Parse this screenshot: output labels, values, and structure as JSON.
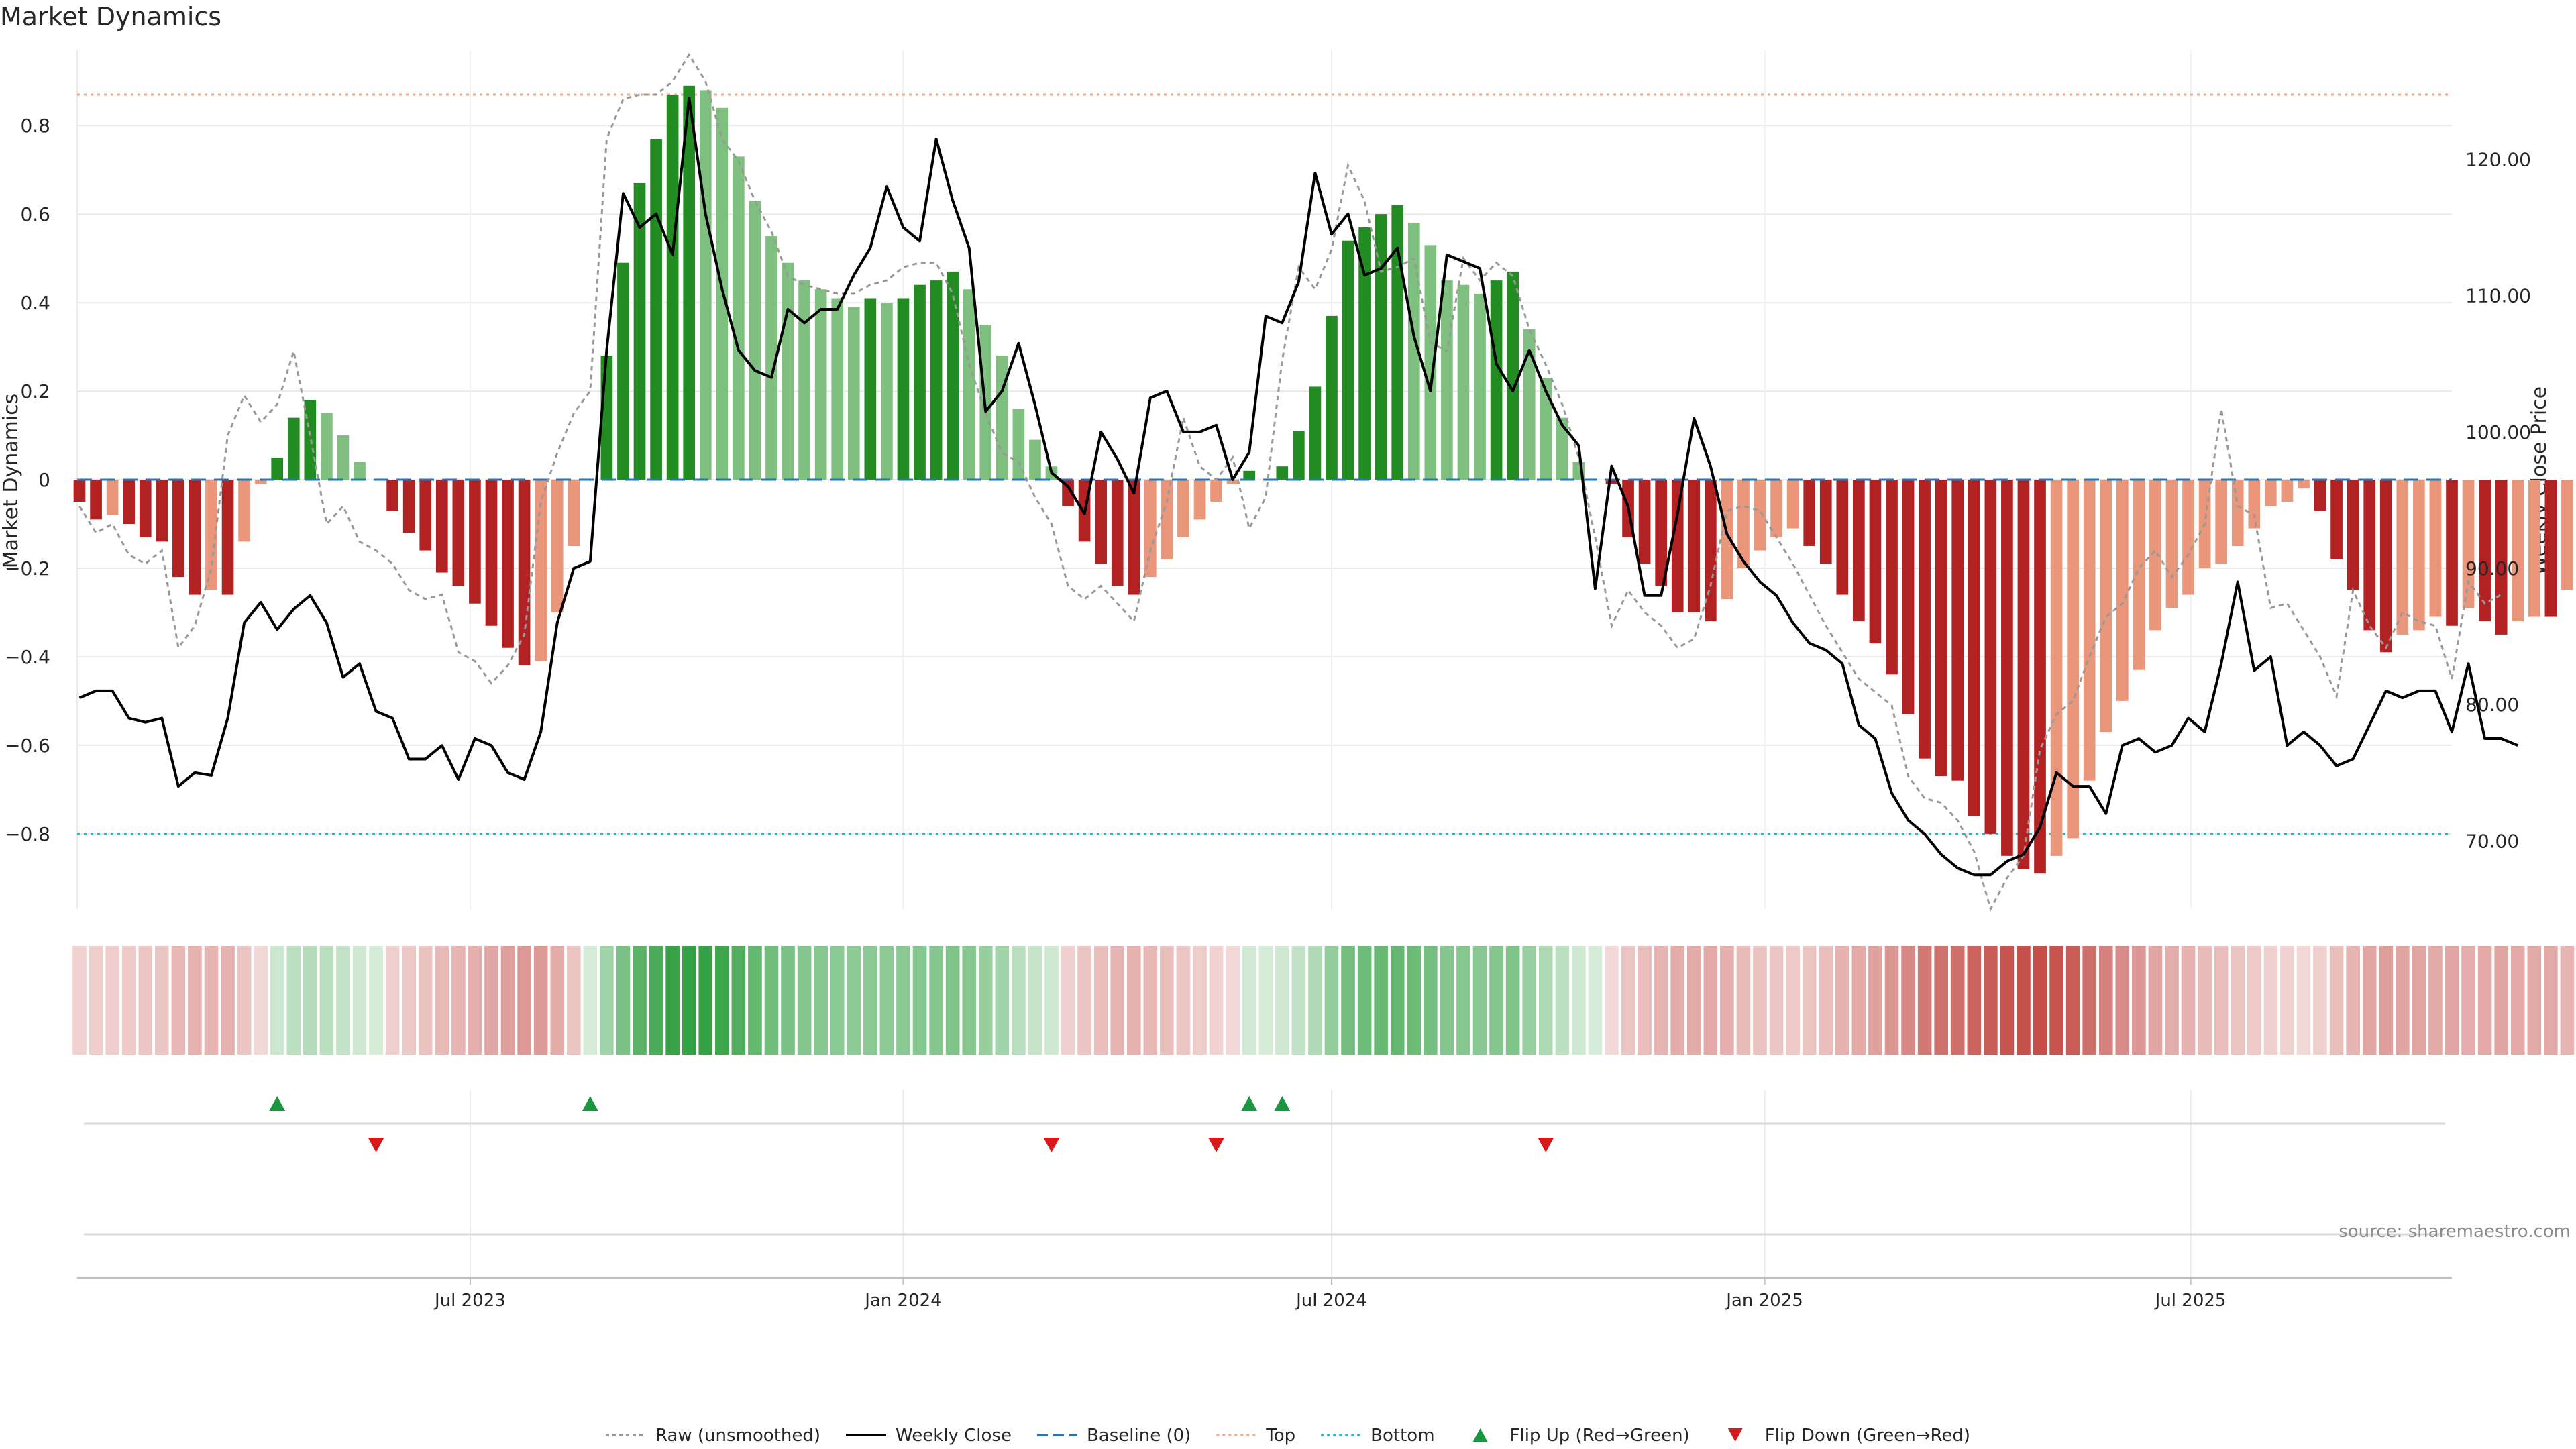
{
  "chart_data": {
    "type": "bar",
    "title": "Market Dynamics",
    "ylabel": "Market Dynamics",
    "y2label": "Weekly Close Price",
    "ylim": [
      -0.97,
      0.97
    ],
    "y2lim": [
      65.0,
      128.0
    ],
    "xlim": [
      "2023-01-15",
      "2025-10-20"
    ],
    "yticks": [
      -0.8,
      -0.6,
      -0.4,
      -0.2,
      0,
      0.2,
      0.4,
      0.6,
      0.8
    ],
    "ytick_labels": [
      "−0.8",
      "−0.6",
      "−0.4",
      "−0.2",
      "0",
      "0.2",
      "0.4",
      "0.6",
      "0.8"
    ],
    "y2ticks": [
      70,
      80,
      90,
      100,
      110,
      120
    ],
    "y2tick_labels": [
      "70.00",
      "80.00",
      "90.00",
      "100.00",
      "110.00",
      "120.00"
    ],
    "xticks": [
      "2023-07-01",
      "2024-01-01",
      "2024-07-01",
      "2025-01-01",
      "2025-07-01"
    ],
    "xtick_labels": [
      "Jul 2023",
      "Jan 2024",
      "Jul 2024",
      "Jan 2025",
      "Jul 2025"
    ],
    "grid": true,
    "legend_position": "bottom-center",
    "top_threshold": 0.87,
    "bottom_threshold": -0.8,
    "baseline": 0,
    "first_week": "2023-01-16",
    "week_step_days": 7,
    "colors": {
      "strong_green": "#228b22",
      "light_green": "#7fbf7f",
      "strong_red": "#b22222",
      "light_red": "#e9967a",
      "raw_line": "#999999",
      "close_line": "#000000",
      "baseline": "#1f77b4",
      "top": "#f4a582",
      "bottom": "#17becf",
      "flip_up": "#1a9641",
      "flip_down": "#d7191c"
    },
    "series": [
      {
        "name": "Market Dynamics",
        "values": [
          -0.05,
          -0.09,
          -0.08,
          -0.1,
          -0.13,
          -0.14,
          -0.22,
          -0.26,
          -0.25,
          -0.26,
          -0.14,
          -0.01,
          0.05,
          0.14,
          0.18,
          0.15,
          0.1,
          0.04,
          0.0,
          -0.07,
          -0.12,
          -0.16,
          -0.21,
          -0.24,
          -0.28,
          -0.33,
          -0.38,
          -0.42,
          -0.41,
          -0.3,
          -0.15,
          0.0,
          0.28,
          0.49,
          0.67,
          0.77,
          0.87,
          0.89,
          0.88,
          0.84,
          0.73,
          0.63,
          0.55,
          0.49,
          0.45,
          0.43,
          0.41,
          0.39,
          0.41,
          0.4,
          0.41,
          0.44,
          0.45,
          0.47,
          0.43,
          0.35,
          0.28,
          0.16,
          0.09,
          0.03,
          -0.06,
          -0.14,
          -0.19,
          -0.24,
          -0.26,
          -0.22,
          -0.18,
          -0.13,
          -0.09,
          -0.05,
          -0.01,
          0.02,
          0.0,
          0.03,
          0.11,
          0.21,
          0.37,
          0.54,
          0.57,
          0.6,
          0.62,
          0.58,
          0.53,
          0.45,
          0.44,
          0.42,
          0.45,
          0.47,
          0.34,
          0.23,
          0.14,
          0.04,
          0.0,
          -0.01,
          -0.13,
          -0.19,
          -0.24,
          -0.3,
          -0.3,
          -0.32,
          -0.27,
          -0.2,
          -0.16,
          -0.13,
          -0.11,
          -0.15,
          -0.19,
          -0.26,
          -0.32,
          -0.37,
          -0.44,
          -0.53,
          -0.63,
          -0.67,
          -0.68,
          -0.76,
          -0.8,
          -0.85,
          -0.88,
          -0.89,
          -0.85,
          -0.81,
          -0.68,
          -0.57,
          -0.5,
          -0.43,
          -0.34,
          -0.29,
          -0.26,
          -0.2,
          -0.19,
          -0.15,
          -0.11,
          -0.06,
          -0.05,
          -0.02,
          -0.07,
          -0.18,
          -0.25,
          -0.34,
          -0.39,
          -0.35,
          -0.34,
          -0.31,
          -0.33,
          -0.29,
          -0.32,
          -0.35,
          -0.32,
          -0.31,
          -0.31,
          -0.25
        ]
      },
      {
        "name": "Raw (unsmoothed)",
        "values": [
          -0.06,
          -0.12,
          -0.1,
          -0.17,
          -0.19,
          -0.16,
          -0.38,
          -0.33,
          -0.2,
          0.1,
          0.19,
          0.13,
          0.17,
          0.29,
          0.1,
          -0.1,
          -0.06,
          -0.14,
          -0.16,
          -0.19,
          -0.25,
          -0.27,
          -0.26,
          -0.39,
          -0.41,
          -0.46,
          -0.42,
          -0.35,
          -0.05,
          0.06,
          0.15,
          0.2,
          0.77,
          0.86,
          0.87,
          0.87,
          0.9,
          0.96,
          0.9,
          0.77,
          0.72,
          0.63,
          0.56,
          0.46,
          0.44,
          0.43,
          0.42,
          0.42,
          0.44,
          0.45,
          0.48,
          0.49,
          0.49,
          0.42,
          0.26,
          0.15,
          0.06,
          0.04,
          -0.04,
          -0.1,
          -0.24,
          -0.27,
          -0.24,
          -0.28,
          -0.32,
          -0.16,
          -0.05,
          0.14,
          0.03,
          0.0,
          0.05,
          -0.11,
          -0.04,
          0.27,
          0.48,
          0.43,
          0.52,
          0.71,
          0.63,
          0.47,
          0.48,
          0.5,
          0.31,
          0.29,
          0.5,
          0.45,
          0.49,
          0.46,
          0.34,
          0.26,
          0.17,
          0.05,
          -0.13,
          -0.33,
          -0.25,
          -0.3,
          -0.33,
          -0.38,
          -0.36,
          -0.24,
          -0.07,
          -0.06,
          -0.07,
          -0.13,
          -0.19,
          -0.26,
          -0.33,
          -0.39,
          -0.45,
          -0.48,
          -0.51,
          -0.67,
          -0.72,
          -0.73,
          -0.77,
          -0.84,
          -0.97,
          -0.9,
          -0.85,
          -0.61,
          -0.53,
          -0.5,
          -0.4,
          -0.31,
          -0.28,
          -0.2,
          -0.16,
          -0.22,
          -0.17,
          -0.1,
          0.16,
          -0.06,
          -0.08,
          -0.29,
          -0.28,
          -0.34,
          -0.4,
          -0.49,
          -0.25,
          -0.33,
          -0.38,
          -0.3,
          -0.32,
          -0.33,
          -0.45,
          -0.23,
          -0.28,
          -0.26
        ]
      },
      {
        "name": "Weekly Close",
        "values": [
          80.5,
          81.0,
          81.0,
          79.0,
          78.7,
          79.0,
          74.0,
          75.0,
          74.8,
          79.0,
          86.0,
          87.5,
          85.5,
          87.0,
          88.0,
          86.0,
          82.0,
          83.0,
          79.5,
          79.0,
          76.0,
          76.0,
          77.0,
          74.5,
          77.5,
          77.0,
          75.0,
          74.5,
          78.0,
          86.0,
          90.0,
          90.5,
          106.0,
          117.5,
          115.0,
          116.0,
          113.0,
          124.5,
          116.0,
          110.5,
          106.0,
          104.5,
          104.0,
          109.0,
          108.0,
          109.0,
          109.0,
          111.5,
          113.5,
          118.0,
          115.0,
          114.0,
          121.5,
          117.0,
          113.5,
          101.5,
          103.0,
          106.5,
          102.0,
          97.0,
          96.0,
          94.0,
          100.0,
          98.0,
          95.5,
          102.5,
          103.0,
          100.0,
          100.0,
          100.5,
          96.5,
          98.5,
          108.5,
          108.0,
          111.0,
          119.0,
          114.5,
          116.0,
          111.5,
          112.0,
          113.5,
          107.0,
          103.0,
          113.0,
          112.5,
          112.0,
          105.0,
          103.0,
          106.0,
          103.0,
          100.5,
          99.0,
          88.5,
          97.5,
          94.5,
          88.0,
          88.0,
          94.0,
          101.0,
          97.5,
          92.5,
          90.5,
          89.0,
          88.0,
          86.0,
          84.5,
          84.0,
          83.0,
          78.5,
          77.5,
          73.5,
          71.5,
          70.5,
          69.0,
          68.0,
          67.5,
          67.5,
          68.5,
          69.0,
          71.0,
          75.0,
          74.0,
          74.0,
          72.0,
          77.0,
          77.5,
          76.5,
          77.0,
          79.0,
          78.0,
          83.0,
          89.0,
          82.5,
          83.5,
          77.0,
          78.0,
          77.0,
          75.5,
          76.0,
          78.5,
          81.0,
          80.5,
          81.0,
          81.0,
          78.0,
          83.0,
          77.5,
          77.5,
          77.0
        ]
      }
    ],
    "flip_up_weeks": [
      12,
      31,
      71,
      73
    ],
    "flip_down_weeks": [
      18,
      59,
      69,
      89
    ],
    "legend": [
      {
        "label": "Raw (unsmoothed)",
        "kind": "dotted-gray"
      },
      {
        "label": "Weekly Close",
        "kind": "solid-black"
      },
      {
        "label": "Baseline (0)",
        "kind": "dashed-blue"
      },
      {
        "label": "Top",
        "kind": "dotted-orange"
      },
      {
        "label": "Bottom",
        "kind": "dotted-cyan"
      },
      {
        "label": "Flip Up (Red→Green)",
        "kind": "triangle-up"
      },
      {
        "label": "Flip Down (Green→Red)",
        "kind": "triangle-down"
      }
    ]
  },
  "source_text": "source: sharemaestro.com"
}
